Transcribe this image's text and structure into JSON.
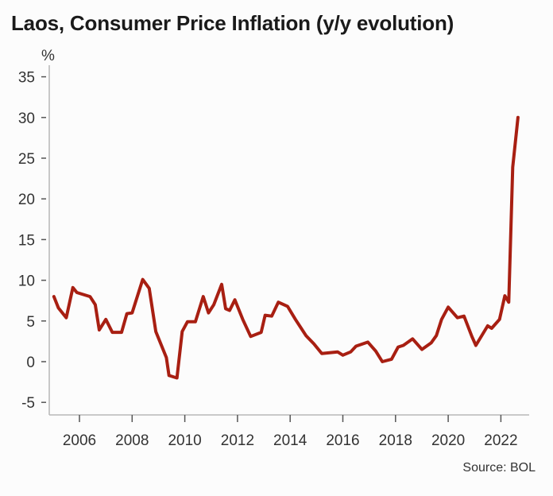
{
  "chart_data": {
    "type": "line",
    "title": "Laos, Consumer Price Inflation (y/y evolution)",
    "ylabel": "%",
    "xlabel": "",
    "source": "Source: BOL",
    "ylim": [
      -5,
      35
    ],
    "xlim": [
      2005,
      2023.3
    ],
    "y_ticks": [
      "35",
      "30",
      "25",
      "20",
      "15",
      "10",
      "5",
      "0",
      "-5"
    ],
    "x_ticks": [
      "2006",
      "2008",
      "2010",
      "2012",
      "2014",
      "2016",
      "2018",
      "2020",
      "2022"
    ],
    "grid": false,
    "line_color": "#a81f12",
    "x": [
      2005.03,
      2005.2,
      2005.45,
      2005.5,
      2005.75,
      2005.9,
      2006.4,
      2006.6,
      2006.75,
      2007.0,
      2007.25,
      2007.6,
      2007.8,
      2008.0,
      2008.4,
      2008.65,
      2008.9,
      2009.3,
      2009.4,
      2009.7,
      2009.9,
      2010.1,
      2010.4,
      2010.7,
      2010.9,
      2011.1,
      2011.4,
      2011.55,
      2011.7,
      2011.9,
      2012.2,
      2012.5,
      2012.9,
      2013.05,
      2013.3,
      2013.55,
      2013.9,
      2014.2,
      2014.6,
      2014.9,
      2015.2,
      2015.8,
      2016.0,
      2016.3,
      2016.5,
      2016.95,
      2017.25,
      2017.5,
      2017.85,
      2018.1,
      2018.3,
      2018.65,
      2019.0,
      2019.35,
      2019.55,
      2019.75,
      2020.0,
      2020.35,
      2020.6,
      2020.9,
      2021.05,
      2021.5,
      2021.65,
      2021.95,
      2022.15,
      2022.3,
      2022.45,
      2022.65
    ],
    "values": [
      8.0,
      6.6,
      5.6,
      5.4,
      9.1,
      8.5,
      8.0,
      7.0,
      3.9,
      5.2,
      3.6,
      3.6,
      5.9,
      6.0,
      10.1,
      9.0,
      3.7,
      0.5,
      -1.7,
      -2.0,
      3.7,
      4.9,
      4.9,
      8.0,
      6.0,
      7.0,
      9.5,
      6.5,
      6.3,
      7.6,
      5.2,
      3.1,
      3.6,
      5.7,
      5.6,
      7.3,
      6.8,
      5.2,
      3.2,
      2.2,
      1.0,
      1.2,
      0.8,
      1.2,
      1.9,
      2.4,
      1.3,
      0.0,
      0.3,
      1.8,
      2.0,
      2.8,
      1.5,
      2.3,
      3.2,
      5.2,
      6.7,
      5.4,
      5.6,
      3.1,
      2.0,
      4.4,
      4.1,
      5.2,
      8.1,
      7.3,
      23.9,
      30.0
    ]
  }
}
